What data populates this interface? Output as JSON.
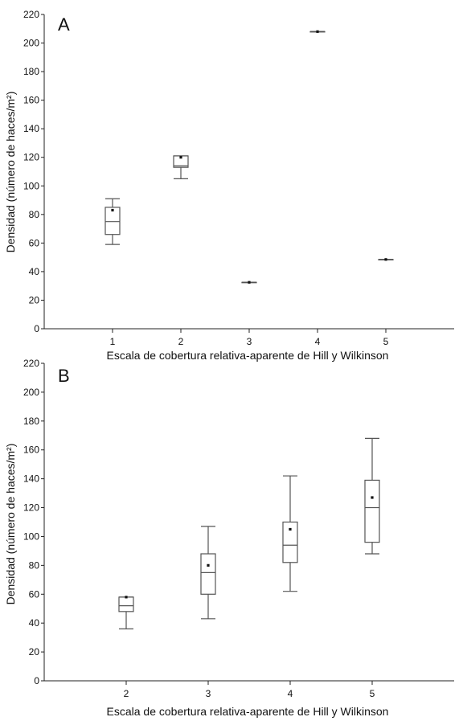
{
  "chart_data": [
    {
      "type": "boxplot",
      "panel_label": "A",
      "xlabel": "Escala de cobertura relativa-aparente de Hill y Wilkinson",
      "ylabel": "Densidad (número de haces/m²)",
      "ylim": [
        0,
        220
      ],
      "yticks": [
        0,
        20,
        40,
        60,
        80,
        100,
        120,
        140,
        160,
        180,
        200,
        220
      ],
      "xlim": [
        0,
        6
      ],
      "categories": [
        "1",
        "2",
        "3",
        "4",
        "5"
      ],
      "boxes": [
        {
          "x": 1,
          "min": 59,
          "q1": 66,
          "median": 75,
          "q3": 85,
          "max": 91,
          "mean": 83
        },
        {
          "x": 2,
          "min": 105,
          "q1": 113,
          "median": 114,
          "q3": 121,
          "max": 121,
          "mean": 120
        },
        {
          "x": 3,
          "min": 32.5,
          "q1": 32.5,
          "median": 32.5,
          "q3": 32.5,
          "max": 32.5,
          "mean": 32.5
        },
        {
          "x": 4,
          "min": 208,
          "q1": 208,
          "median": 208,
          "q3": 208,
          "max": 208,
          "mean": 208
        },
        {
          "x": 5,
          "min": 48.5,
          "q1": 48.5,
          "median": 48.5,
          "q3": 48.5,
          "max": 48.5,
          "mean": 48.5
        }
      ]
    },
    {
      "type": "boxplot",
      "panel_label": "B",
      "xlabel": "Escala de cobertura relativa-aparente de Hill y Wilkinson",
      "ylabel": "Densidad (número de haces/m²)",
      "ylim": [
        0,
        220
      ],
      "yticks": [
        0,
        20,
        40,
        60,
        80,
        100,
        120,
        140,
        160,
        180,
        200,
        220
      ],
      "xlim": [
        1,
        6
      ],
      "categories": [
        "2",
        "3",
        "4",
        "5"
      ],
      "boxes": [
        {
          "x": 2,
          "min": 36,
          "q1": 48,
          "median": 52,
          "q3": 58,
          "max": 58,
          "mean": 58
        },
        {
          "x": 3,
          "min": 43,
          "q1": 60,
          "median": 75,
          "q3": 88,
          "max": 107,
          "mean": 80
        },
        {
          "x": 4,
          "min": 62,
          "q1": 82,
          "median": 94,
          "q3": 110,
          "max": 142,
          "mean": 105
        },
        {
          "x": 5,
          "min": 88,
          "q1": 96,
          "median": 120,
          "q3": 139,
          "max": 168,
          "mean": 127
        }
      ]
    }
  ]
}
